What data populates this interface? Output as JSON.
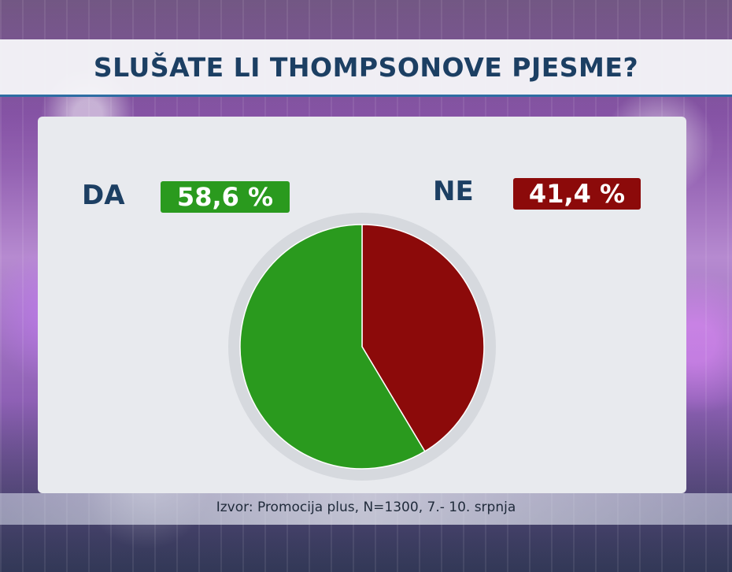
{
  "title": "SLUŠATE LI THOMPSONOVE PJESME?",
  "source": "Izvor: Promocija plus, N=1300, 7.- 10. srpnja",
  "colors": {
    "da": "#2a9a1e",
    "ne": "#8c0a0a",
    "title": "#1c3f63"
  },
  "legend": {
    "da_label": "DA",
    "da_value": "58,6 %",
    "ne_label": "NE",
    "ne_value": "41,4 %"
  },
  "chart_data": {
    "type": "pie",
    "title": "SLUŠATE LI THOMPSONOVE PJESME?",
    "categories": [
      "DA",
      "NE"
    ],
    "values": [
      58.6,
      41.4
    ],
    "colors": [
      "#2a9a1e",
      "#8c0a0a"
    ]
  }
}
